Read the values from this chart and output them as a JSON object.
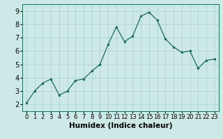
{
  "xlabel": "Humidex (Indice chaleur)",
  "x": [
    0,
    1,
    2,
    3,
    4,
    5,
    6,
    7,
    8,
    9,
    10,
    11,
    12,
    13,
    14,
    15,
    16,
    17,
    18,
    19,
    20,
    21,
    22,
    23
  ],
  "y": [
    2.1,
    3.0,
    3.6,
    3.9,
    2.7,
    3.0,
    3.8,
    3.9,
    4.5,
    5.0,
    6.5,
    7.8,
    6.7,
    7.1,
    8.6,
    8.9,
    8.3,
    6.9,
    6.3,
    5.9,
    6.0,
    4.7,
    5.3,
    5.4
  ],
  "line_color": "#1a6b5a",
  "marker_size": 3,
  "bg_color": "#cce9e7",
  "grid_color": "#afd4d1",
  "ylim": [
    1.5,
    9.5
  ],
  "xlim": [
    -0.5,
    23.5
  ],
  "yticks": [
    2,
    3,
    4,
    5,
    6,
    7,
    8,
    9
  ],
  "xticks": [
    0,
    1,
    2,
    3,
    4,
    5,
    6,
    7,
    8,
    9,
    10,
    11,
    12,
    13,
    14,
    15,
    16,
    17,
    18,
    19,
    20,
    21,
    22,
    23
  ],
  "ytick_fontsize": 7,
  "xtick_fontsize": 6,
  "xlabel_fontsize": 7.5
}
